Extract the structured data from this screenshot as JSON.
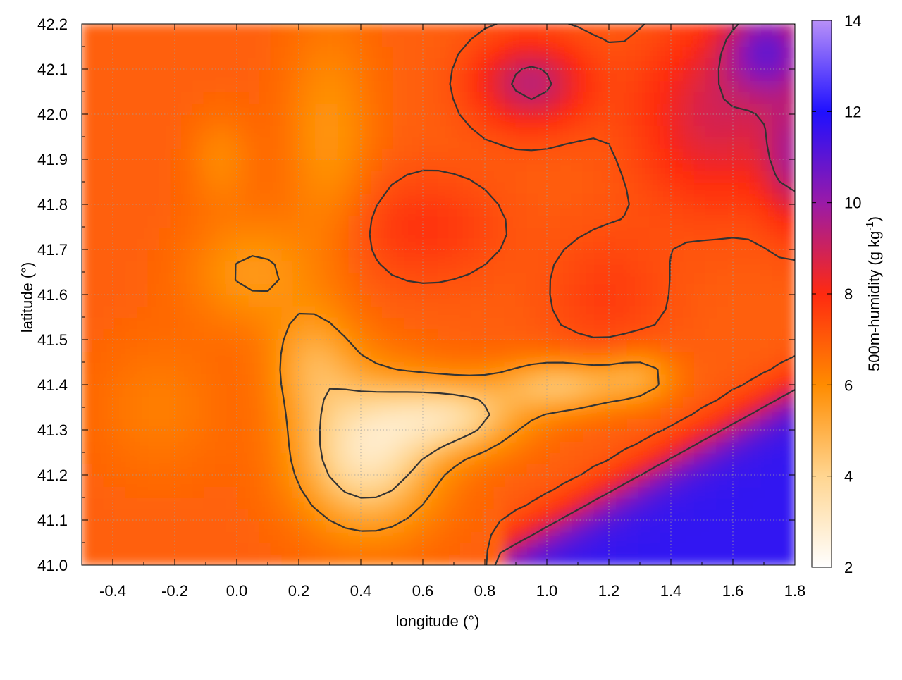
{
  "chart_data": {
    "type": "heatmap",
    "title": "",
    "xlabel": "longitude (°)",
    "ylabel": "latitude (°)",
    "xlim": [
      -0.5,
      1.8
    ],
    "ylim": [
      41.0,
      42.2
    ],
    "xticks": [
      -0.4,
      -0.2,
      0.0,
      0.2,
      0.4,
      0.6,
      0.8,
      1.0,
      1.2,
      1.4,
      1.6,
      1.8
    ],
    "xtick_labels": [
      "-0.4",
      "-0.2",
      "0.0",
      "0.2",
      "0.4",
      "0.6",
      "0.8",
      "1.0",
      "1.2",
      "1.4",
      "1.6",
      "1.8"
    ],
    "yticks": [
      41.0,
      41.1,
      41.2,
      41.3,
      41.4,
      41.5,
      41.6,
      41.7,
      41.8,
      41.9,
      42.0,
      42.1,
      42.2
    ],
    "ytick_labels": [
      "41.0",
      "41.1",
      "41.2",
      "41.3",
      "41.4",
      "41.5",
      "41.6",
      "41.7",
      "41.8",
      "41.9",
      "42.0",
      "42.1",
      "42.2"
    ],
    "grid": true,
    "colorbar": {
      "label_main": "500m-humidity (g kg",
      "label_sup": "-1",
      "label_end": ")",
      "range": [
        2,
        14
      ],
      "ticks": [
        2,
        4,
        6,
        8,
        10,
        12,
        14
      ],
      "tick_labels": [
        "2",
        "4",
        "6",
        "8",
        "10",
        "12",
        "14"
      ],
      "colors": {
        "2": "#ffffff",
        "4": "#ffd590",
        "6": "#ff8c00",
        "8": "#ff2a10",
        "10": "#9a1aa8",
        "12": "#1f10ff",
        "14": "#b890f8"
      }
    },
    "approximate_regions": [
      {
        "name": "northwest orange-red",
        "lon": -0.3,
        "lat": 41.8,
        "value": 7.0
      },
      {
        "name": "north-central orange",
        "lon": 0.2,
        "lat": 42.0,
        "value": 6.0
      },
      {
        "name": "northeast purple",
        "lon": 0.9,
        "lat": 42.05,
        "value": 9.5
      },
      {
        "name": "central red",
        "lon": 0.6,
        "lat": 41.8,
        "value": 8.0
      },
      {
        "name": "east purple-red",
        "lon": 1.6,
        "lat": 41.9,
        "value": 9.5
      },
      {
        "name": "central light corridor",
        "lon": 0.45,
        "lat": 41.3,
        "value": 3.5
      },
      {
        "name": "southeast coast blue",
        "lon": 1.4,
        "lat": 41.1,
        "value": 11.5
      },
      {
        "name": "southwest orange",
        "lon": -0.2,
        "lat": 41.3,
        "value": 6.0
      }
    ]
  }
}
